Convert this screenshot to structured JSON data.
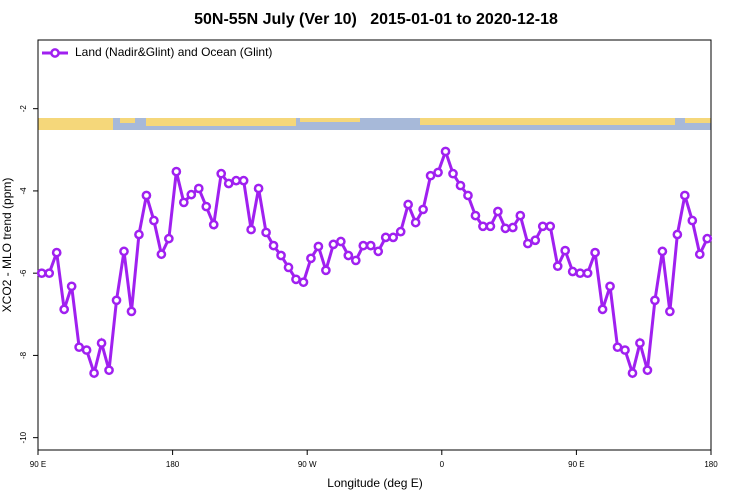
{
  "chart_data": {
    "type": "line",
    "title": "50N-55N July (Ver 10)   2015-01-01 to 2020-12-18",
    "x_label": "Longitude (deg E)",
    "y_label": "XCO2 - MLO trend (ppm)",
    "xlim": [
      90,
      540
    ],
    "ylim": [
      -10.3,
      -0.33
    ],
    "xticks": [
      {
        "value": 90,
        "label": "90 E"
      },
      180,
      {
        "value": 270,
        "label": "90 W"
      },
      {
        "value": 360,
        "label": "0"
      },
      {
        "value": 450,
        "label": "90 E"
      },
      {
        "value": 540,
        "label": "180"
      }
    ],
    "yticks": [
      -2,
      -4,
      -6,
      -8,
      -10
    ],
    "legend_position": "top-left",
    "x": [
      92.5,
      97.5,
      102.5,
      107.5,
      112.5,
      117.5,
      122.5,
      127.5,
      132.5,
      137.5,
      142.5,
      147.5,
      152.5,
      157.5,
      162.5,
      167.5,
      172.5,
      177.5,
      182.5,
      187.5,
      192.5,
      197.5,
      202.5,
      207.5,
      212.5,
      217.5,
      222.5,
      227.5,
      232.5,
      237.5,
      242.5,
      247.5,
      252.5,
      257.5,
      262.5,
      267.5,
      272.5,
      277.5,
      282.5,
      287.5,
      292.5,
      297.5,
      302.5,
      307.5,
      312.5,
      317.5,
      322.5,
      327.5,
      332.5,
      337.5,
      342.5,
      347.5,
      352.5,
      357.5,
      362.5,
      367.5,
      372.5,
      377.5,
      382.5,
      387.5,
      392.5,
      397.5,
      402.5,
      407.5,
      412.5,
      417.5,
      422.5,
      427.5,
      432.5,
      437.5,
      442.5,
      447.5,
      452.5,
      457.5,
      462.5,
      467.5,
      472.5,
      477.5,
      482.5,
      487.5,
      492.5,
      497.5,
      502.5,
      507.5,
      512.5,
      517.5,
      522.5,
      527.5,
      532.5,
      537.5
    ],
    "series": [
      {
        "name": "Land (Nadir&Glint) and Ocean (Glint)",
        "color": "#a020f0",
        "values": [
          -6.0,
          -6.0,
          -5.5,
          -6.88,
          -6.32,
          -7.8,
          -7.87,
          -8.43,
          -7.7,
          -8.36,
          -6.66,
          -5.47,
          -6.93,
          -5.06,
          -4.11,
          -4.72,
          -5.54,
          -5.16,
          -3.53,
          -4.28,
          -4.09,
          -3.94,
          -4.38,
          -4.82,
          -3.58,
          -3.82,
          -3.75,
          -3.75,
          -4.94,
          -3.94,
          -5.01,
          -5.33,
          -5.57,
          -5.86,
          -6.15,
          -6.22,
          -5.64,
          -5.35,
          -5.93,
          -5.3,
          -5.23,
          -5.57,
          -5.69,
          -5.33,
          -5.33,
          -5.47,
          -5.13,
          -5.13,
          -4.99,
          -4.33,
          -4.77,
          -4.45,
          -3.63,
          -3.55,
          -3.04,
          -3.58,
          -3.87,
          -4.11,
          -4.6,
          -4.86,
          -4.86,
          -4.5,
          -4.91,
          -4.89,
          -4.6,
          -5.28,
          -5.2,
          -4.86,
          -4.86,
          -5.83,
          -5.45,
          -5.96,
          -6.0,
          -6.0,
          -5.5,
          -6.88,
          -6.32,
          -7.8,
          -7.87,
          -8.43,
          -7.7,
          -8.36,
          -6.66,
          -5.47,
          -6.93,
          -5.06,
          -4.11,
          -4.72,
          -5.54,
          -5.16
        ]
      }
    ]
  }
}
